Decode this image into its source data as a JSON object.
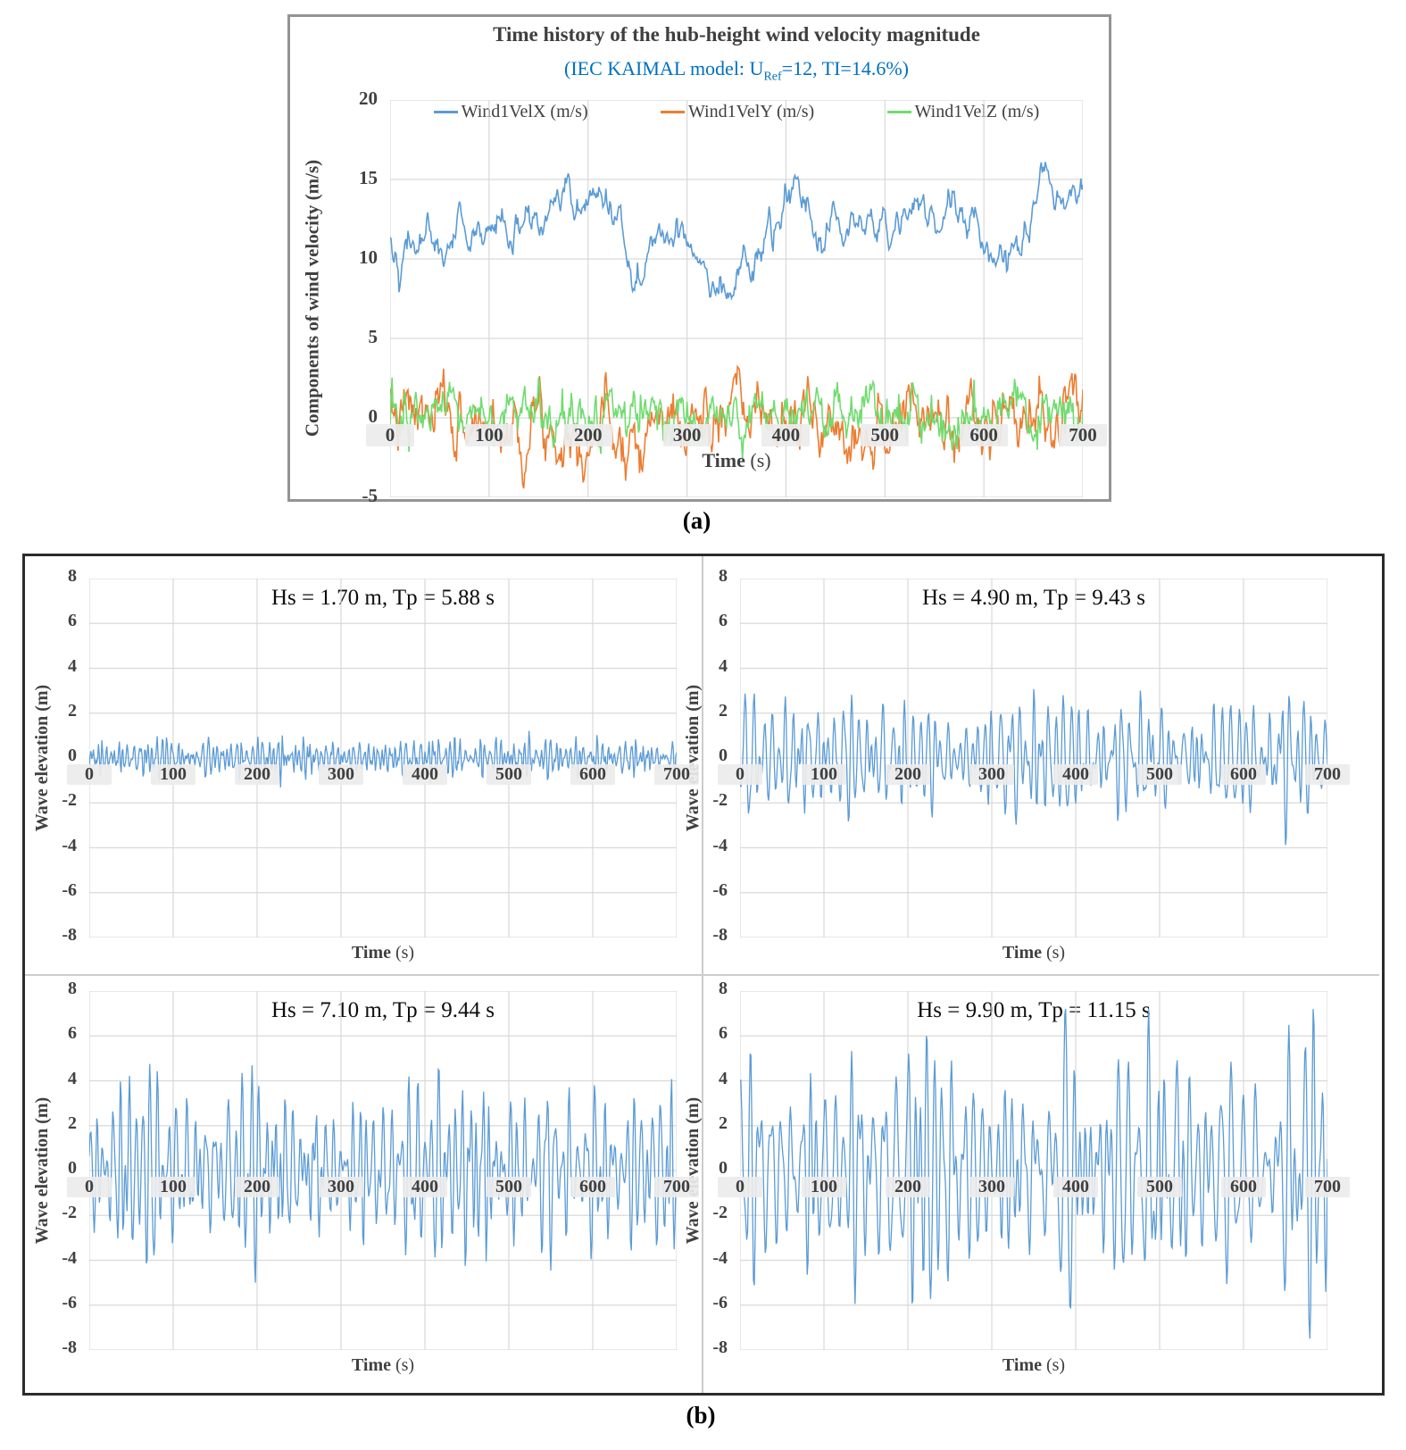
{
  "captions": {
    "a": "(a)",
    "b": "(b)"
  },
  "colors": {
    "wind_x_blue": "#5B9BD5",
    "wind_y_orange": "#ED7D31",
    "wind_z_green": "#6FDC6F",
    "wave_blue": "#5B9BD5",
    "gridline": "#D9D9D9",
    "axis_text": "#404040",
    "subtitle_blue": "#0070C0",
    "panel_a_border": "#949494",
    "panel_b_border": "#2b2b2b"
  },
  "chart_data": [
    {
      "id": "wind",
      "type": "line",
      "title": "Time history of the hub-height wind velocity magnitude",
      "subtitle_pre": "(IEC KAIMAL model: U",
      "subtitle_sub": "Ref",
      "subtitle_post": "=12, TI=14.6%)",
      "ylabel": "Components of wind velocity (m/s)",
      "xlabel_main": "Time",
      "xlabel_unit": " (s)",
      "xlim": [
        0,
        700
      ],
      "ylim": [
        -5,
        20
      ],
      "x_ticks": [
        0,
        100,
        200,
        300,
        400,
        500,
        600,
        700
      ],
      "y_ticks": [
        20,
        15,
        10,
        5,
        0,
        -5
      ],
      "grid": true,
      "legend_position": "top-inside",
      "n_points": 701,
      "series": [
        {
          "name": "Wind1VelX (m/s)",
          "color": "#5B9BD5",
          "model": "ar1",
          "mean": 11.8,
          "std": 1.75,
          "persistence": 0.965,
          "observed_min": 7.4,
          "observed_max": 17.1,
          "seed": 42
        },
        {
          "name": "Wind1VelY (m/s)",
          "color": "#ED7D31",
          "model": "ar1",
          "mean": -0.3,
          "std": 1.35,
          "persistence": 0.82,
          "observed_min": -4.6,
          "observed_max": 3.6,
          "seed": 7
        },
        {
          "name": "Wind1VelZ (m/s)",
          "color": "#6FDC6F",
          "model": "ar1",
          "mean": 0.05,
          "std": 0.85,
          "persistence": 0.6,
          "observed_min": -2.6,
          "observed_max": 2.6,
          "seed": 13
        }
      ]
    },
    {
      "id": "wave1",
      "type": "line",
      "title": "Hs = 1.70 m, Tp = 5.88 s",
      "hs_m": 1.7,
      "tp_s": 5.88,
      "ylabel": "Wave elevation (m)",
      "xlabel_main": "Time",
      "xlabel_unit": " (s)",
      "xlim": [
        0,
        700
      ],
      "ylim": [
        -8,
        8
      ],
      "x_ticks": [
        0,
        100,
        200,
        300,
        400,
        500,
        600,
        700
      ],
      "y_ticks": [
        8,
        6,
        4,
        2,
        0,
        -2,
        -4,
        -6,
        -8
      ],
      "grid": true,
      "n_points": 701,
      "series": [
        {
          "name": "Wave elevation (m)",
          "color": "#5B9BD5",
          "model": "wave",
          "std": 0.425,
          "tp_s": 5.88,
          "observed_min": -1.6,
          "observed_max": 1.5,
          "seed": 101
        }
      ]
    },
    {
      "id": "wave2",
      "type": "line",
      "title": "Hs = 4.90 m, Tp = 9.43 s",
      "hs_m": 4.9,
      "tp_s": 9.43,
      "ylabel": "Wave elevation (m)",
      "xlabel_main": "Time",
      "xlabel_unit": " (s)",
      "xlim": [
        0,
        700
      ],
      "ylim": [
        -8,
        8
      ],
      "x_ticks": [
        0,
        100,
        200,
        300,
        400,
        500,
        600,
        700
      ],
      "y_ticks": [
        8,
        6,
        4,
        2,
        0,
        -2,
        -4,
        -6,
        -8
      ],
      "grid": true,
      "n_points": 701,
      "series": [
        {
          "name": "Wave elevation (m)",
          "color": "#5B9BD5",
          "model": "wave",
          "std": 1.225,
          "tp_s": 9.43,
          "observed_min": -4.0,
          "observed_max": 4.1,
          "seed": 102
        }
      ]
    },
    {
      "id": "wave3",
      "type": "line",
      "title": "Hs = 7.10 m, Tp = 9.44 s",
      "hs_m": 7.1,
      "tp_s": 9.44,
      "ylabel": "Wave elevation (m)",
      "xlabel_main": "Time",
      "xlabel_unit": " (s)",
      "xlim": [
        0,
        700
      ],
      "ylim": [
        -8,
        8
      ],
      "x_ticks": [
        0,
        100,
        200,
        300,
        400,
        500,
        600,
        700
      ],
      "y_ticks": [
        8,
        6,
        4,
        2,
        0,
        -2,
        -4,
        -6,
        -8
      ],
      "grid": true,
      "n_points": 701,
      "series": [
        {
          "name": "Wave elevation (m)",
          "color": "#5B9BD5",
          "model": "wave",
          "std": 1.775,
          "tp_s": 9.44,
          "observed_min": -5.4,
          "observed_max": 6.1,
          "seed": 103
        }
      ]
    },
    {
      "id": "wave4",
      "type": "line",
      "title": "Hs = 9.90 m, Tp = 11.15 s",
      "hs_m": 9.9,
      "tp_s": 11.15,
      "ylabel": "Wave elevation (m)",
      "xlabel_main": "Time",
      "xlabel_unit": " (s)",
      "xlim": [
        0,
        700
      ],
      "ylim": [
        -8,
        8
      ],
      "x_ticks": [
        0,
        100,
        200,
        300,
        400,
        500,
        600,
        700
      ],
      "y_ticks": [
        8,
        6,
        4,
        2,
        0,
        -2,
        -4,
        -6,
        -8
      ],
      "grid": true,
      "n_points": 701,
      "series": [
        {
          "name": "Wave elevation (m)",
          "color": "#5B9BD5",
          "model": "wave",
          "std": 2.475,
          "tp_s": 11.15,
          "observed_min": -7.5,
          "observed_max": 7.2,
          "seed": 104
        }
      ]
    }
  ]
}
